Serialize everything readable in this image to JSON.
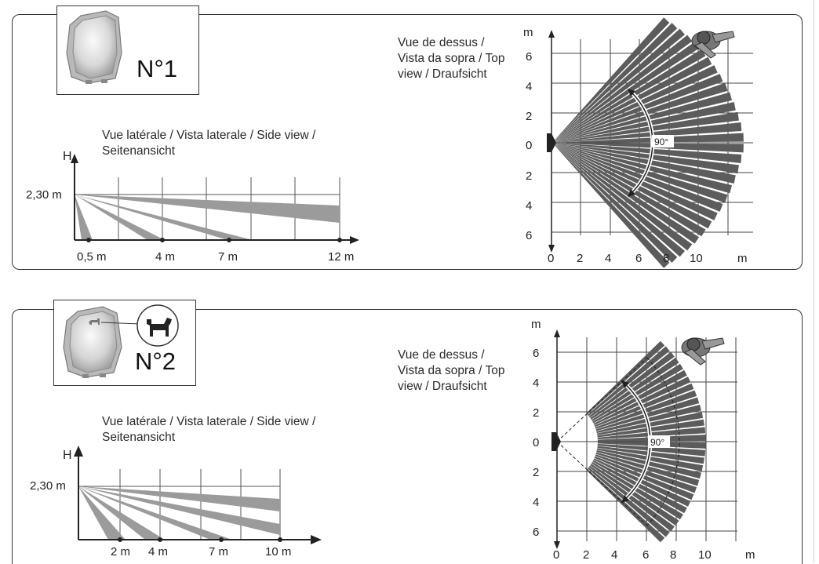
{
  "panels": [
    {
      "model_label": "N°1",
      "side_caption": "Vue latérale / Vista laterale / Side view / Seitenansicht",
      "side_h_label": "H",
      "side_height_label": "2,30 m",
      "side_distances": [
        "0,5 m",
        "4 m",
        "7 m",
        "12 m"
      ],
      "top_caption": "Vue de dessus / Vista da sopra / Top view / Draufsicht",
      "top_unit_y": "m",
      "top_unit_x": "m",
      "top_y_ticks": [
        "6",
        "4",
        "2",
        "0",
        "2",
        "4",
        "6"
      ],
      "top_x_ticks": [
        "0",
        "2",
        "4",
        "6",
        "8",
        "10"
      ],
      "top_angle": "90°"
    },
    {
      "model_label": "N°2",
      "side_caption": "Vue latérale / Vista laterale / Side view / Seitenansicht",
      "side_h_label": "H",
      "side_height_label": "2,30 m",
      "side_distances": [
        "2 m",
        "4 m",
        "7 m",
        "10 m"
      ],
      "top_caption": "Vue de dessus / Vista da sopra / Top view / Draufsicht",
      "top_unit_y": "m",
      "top_unit_x": "m",
      "top_y_ticks": [
        "6",
        "4",
        "2",
        "0",
        "2",
        "4",
        "6"
      ],
      "top_x_ticks": [
        "0",
        "2",
        "4",
        "6",
        "8",
        "10"
      ],
      "top_angle": "90°"
    }
  ],
  "colors": {
    "beam_side": "#9b9b9b",
    "beam_top": "#5c5c5c",
    "frame": "#333333"
  }
}
